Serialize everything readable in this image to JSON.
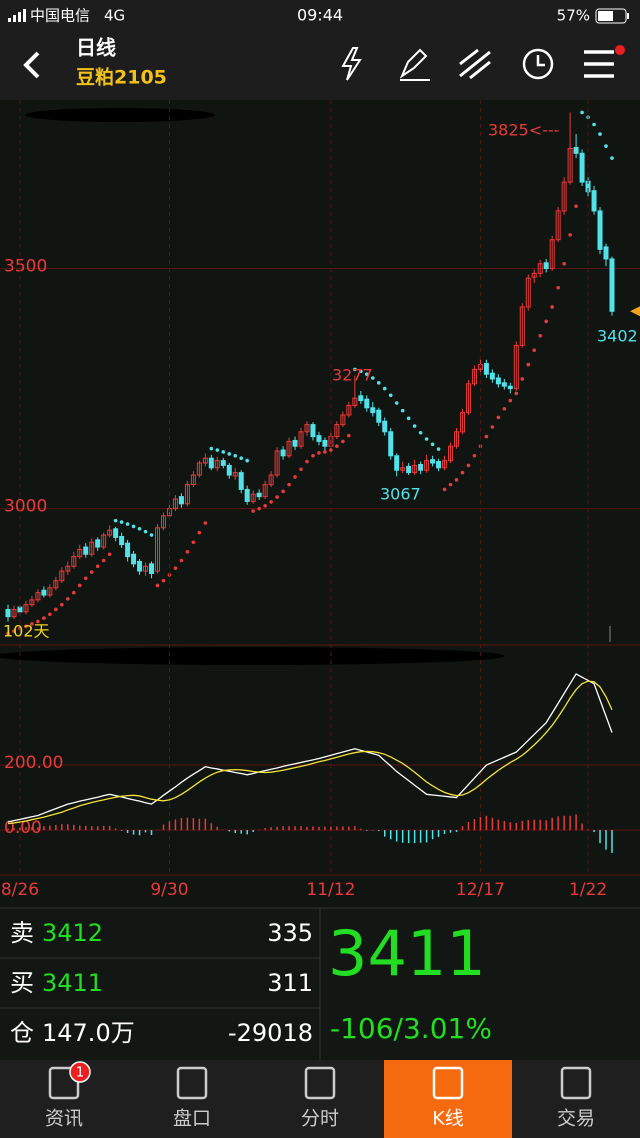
{
  "status_bar": {
    "carrier": "中国电信",
    "network": "4G",
    "time": "09:44",
    "battery": "57%"
  },
  "header": {
    "title": "日线",
    "symbol": "豆粕2105"
  },
  "chart_data": [
    {
      "type": "candlestick",
      "up_color": "#e83a3a",
      "down_color": "#52e3ea",
      "ylim": [
        2716,
        3851
      ],
      "yticks": [
        3000,
        3500
      ],
      "grid": true,
      "annotations": [
        {
          "text": "3825<---",
          "color": "#e83a3a"
        },
        {
          "text": "3277",
          "color": "#e83a3a"
        },
        {
          "text": "3067",
          "color": "#52e3ea"
        },
        {
          "text": "3402",
          "color": "#52e3ea"
        },
        {
          "text": "102天",
          "color": "#f2d21b"
        }
      ],
      "candles": [
        [
          2790,
          2800,
          2765,
          2775
        ],
        [
          2775,
          2798,
          2770,
          2790
        ],
        [
          2795,
          2800,
          2778,
          2785
        ],
        [
          2785,
          2808,
          2780,
          2800
        ],
        [
          2800,
          2818,
          2795,
          2810
        ],
        [
          2810,
          2832,
          2805,
          2825
        ],
        [
          2830,
          2838,
          2815,
          2820
        ],
        [
          2820,
          2842,
          2815,
          2835
        ],
        [
          2835,
          2858,
          2830,
          2850
        ],
        [
          2850,
          2878,
          2845,
          2870
        ],
        [
          2870,
          2890,
          2862,
          2880
        ],
        [
          2880,
          2910,
          2875,
          2900
        ],
        [
          2900,
          2925,
          2895,
          2915
        ],
        [
          2920,
          2928,
          2898,
          2905
        ],
        [
          2905,
          2938,
          2900,
          2930
        ],
        [
          2935,
          2940,
          2912,
          2920
        ],
        [
          2920,
          2950,
          2915,
          2945
        ],
        [
          2945,
          2965,
          2940,
          2955
        ],
        [
          2958,
          2962,
          2932,
          2940
        ],
        [
          2942,
          2950,
          2918,
          2925
        ],
        [
          2928,
          2935,
          2890,
          2900
        ],
        [
          2905,
          2912,
          2878,
          2885
        ],
        [
          2890,
          2895,
          2862,
          2870
        ],
        [
          2870,
          2888,
          2860,
          2880
        ],
        [
          2885,
          2890,
          2855,
          2865
        ],
        [
          2870,
          2968,
          2865,
          2960
        ],
        [
          2960,
          2992,
          2955,
          2985
        ],
        [
          2985,
          3008,
          2978,
          3000
        ],
        [
          3000,
          3028,
          2995,
          3020
        ],
        [
          3025,
          3032,
          3002,
          3010
        ],
        [
          3010,
          3058,
          3005,
          3050
        ],
        [
          3050,
          3078,
          3045,
          3070
        ],
        [
          3070,
          3100,
          3065,
          3095
        ],
        [
          3095,
          3115,
          3088,
          3105
        ],
        [
          3105,
          3112,
          3080,
          3085
        ],
        [
          3085,
          3108,
          3078,
          3100
        ],
        [
          3100,
          3106,
          3084,
          3090
        ],
        [
          3090,
          3095,
          3062,
          3070
        ],
        [
          3068,
          3085,
          3060,
          3075
        ],
        [
          3075,
          3080,
          3032,
          3040
        ],
        [
          3040,
          3048,
          3008,
          3015
        ],
        [
          3015,
          3038,
          3010,
          3030
        ],
        [
          3032,
          3040,
          3018,
          3025
        ],
        [
          3025,
          3058,
          3020,
          3050
        ],
        [
          3050,
          3078,
          3045,
          3070
        ],
        [
          3070,
          3128,
          3065,
          3120
        ],
        [
          3122,
          3130,
          3102,
          3110
        ],
        [
          3110,
          3148,
          3105,
          3140
        ],
        [
          3142,
          3150,
          3122,
          3130
        ],
        [
          3130,
          3168,
          3125,
          3160
        ],
        [
          3160,
          3182,
          3152,
          3175
        ],
        [
          3175,
          3180,
          3142,
          3150
        ],
        [
          3152,
          3160,
          3132,
          3140
        ],
        [
          3142,
          3148,
          3120,
          3130
        ],
        [
          3130,
          3158,
          3125,
          3150
        ],
        [
          3150,
          3182,
          3145,
          3175
        ],
        [
          3175,
          3202,
          3170,
          3195
        ],
        [
          3195,
          3222,
          3190,
          3215
        ],
        [
          3215,
          3277,
          3210,
          3230
        ],
        [
          3235,
          3245,
          3218,
          3225
        ],
        [
          3228,
          3236,
          3202,
          3210
        ],
        [
          3210,
          3222,
          3192,
          3200
        ],
        [
          3205,
          3210,
          3172,
          3180
        ],
        [
          3182,
          3190,
          3152,
          3160
        ],
        [
          3160,
          3168,
          3102,
          3110
        ],
        [
          3110,
          3115,
          3067,
          3080
        ],
        [
          3080,
          3098,
          3074,
          3085
        ],
        [
          3088,
          3095,
          3070,
          3075
        ],
        [
          3075,
          3102,
          3070,
          3090
        ],
        [
          3092,
          3098,
          3072,
          3080
        ],
        [
          3080,
          3112,
          3075,
          3100
        ],
        [
          3102,
          3110,
          3088,
          3095
        ],
        [
          3098,
          3104,
          3078,
          3085
        ],
        [
          3085,
          3110,
          3080,
          3100
        ],
        [
          3100,
          3138,
          3095,
          3130
        ],
        [
          3130,
          3168,
          3125,
          3160
        ],
        [
          3160,
          3208,
          3155,
          3200
        ],
        [
          3200,
          3268,
          3195,
          3260
        ],
        [
          3260,
          3298,
          3255,
          3290
        ],
        [
          3290,
          3312,
          3282,
          3300
        ],
        [
          3302,
          3310,
          3272,
          3280
        ],
        [
          3282,
          3290,
          3262,
          3270
        ],
        [
          3272,
          3280,
          3252,
          3260
        ],
        [
          3262,
          3270,
          3248,
          3255
        ],
        [
          3255,
          3262,
          3240,
          3250
        ],
        [
          3250,
          3348,
          3245,
          3340
        ],
        [
          3340,
          3428,
          3335,
          3420
        ],
        [
          3420,
          3488,
          3412,
          3480
        ],
        [
          3482,
          3498,
          3470,
          3490
        ],
        [
          3490,
          3518,
          3482,
          3510
        ],
        [
          3512,
          3520,
          3492,
          3500
        ],
        [
          3500,
          3568,
          3495,
          3560
        ],
        [
          3560,
          3628,
          3555,
          3620
        ],
        [
          3620,
          3690,
          3612,
          3680
        ],
        [
          3680,
          3825,
          3675,
          3750
        ],
        [
          3752,
          3780,
          3730,
          3740
        ],
        [
          3740,
          3748,
          3672,
          3680
        ],
        [
          3682,
          3690,
          3650,
          3660
        ],
        [
          3662,
          3672,
          3612,
          3620
        ],
        [
          3620,
          3628,
          3530,
          3540
        ],
        [
          3545,
          3552,
          3505,
          3520
        ],
        [
          3520,
          3525,
          3402,
          3411
        ]
      ],
      "sar": [
        2740,
        2745,
        2750,
        2755,
        2760,
        2765,
        2772,
        2780,
        2790,
        2800,
        2812,
        2825,
        2840,
        2855,
        2868,
        2880,
        2892,
        2905,
        2975,
        2972,
        2968,
        2963,
        2958,
        2952,
        2945,
        2840,
        2850,
        2862,
        2876,
        2892,
        2910,
        2930,
        2950,
        2970,
        3125,
        3122,
        3118,
        3114,
        3110,
        3105,
        3100,
        2995,
        3000,
        3006,
        3014,
        3024,
        3036,
        3050,
        3066,
        3082,
        3098,
        3110,
        3116,
        3118,
        3122,
        3130,
        3140,
        3152,
        3290,
        3286,
        3280,
        3272,
        3262,
        3250,
        3236,
        3220,
        3204,
        3188,
        3172,
        3158,
        3145,
        3134,
        3124,
        3040,
        3050,
        3060,
        3075,
        3090,
        3110,
        3130,
        3150,
        3170,
        3190,
        3208,
        3225,
        3240,
        3270,
        3300,
        3330,
        3360,
        3390,
        3420,
        3460,
        3510,
        3570,
        3630,
        3825,
        3815,
        3800,
        3780,
        3755,
        3730
      ]
    },
    {
      "type": "macd",
      "dif_color": "#ffffff",
      "dea_color": "#f2e23a",
      "up_color": "#e83a3a",
      "down_color": "#52e3ea",
      "ylim": [
        -138,
        569
      ],
      "yticks": [
        {
          "value": 200,
          "label": "200.00"
        },
        {
          "value": 0,
          "label": "0.00"
        }
      ],
      "categories": [
        null,
        null,
        "8/26",
        null,
        null,
        null,
        null,
        null,
        null,
        null,
        null,
        null,
        null,
        null,
        null,
        null,
        null,
        null,
        null,
        null,
        null,
        null,
        null,
        null,
        null,
        null,
        null,
        "9/30",
        null,
        null,
        null,
        null,
        null,
        null,
        null,
        null,
        null,
        null,
        null,
        null,
        null,
        null,
        null,
        null,
        null,
        null,
        null,
        null,
        null,
        null,
        null,
        null,
        null,
        null,
        "11/12",
        null,
        null,
        null,
        null,
        null,
        null,
        null,
        null,
        null,
        null,
        null,
        null,
        null,
        null,
        null,
        null,
        null,
        null,
        null,
        null,
        null,
        null,
        null,
        null,
        "12/17",
        null,
        null,
        null,
        null,
        null,
        null,
        null,
        null,
        null,
        null,
        null,
        null,
        null,
        null,
        null,
        null,
        null,
        "1/22",
        null,
        null,
        null,
        null
      ],
      "dif": [
        25,
        29,
        33,
        37,
        41,
        45,
        52,
        59,
        66,
        73,
        80,
        84,
        89,
        93,
        97,
        101,
        106,
        110,
        106,
        102,
        97,
        93,
        89,
        84,
        80,
        93,
        107,
        120,
        133,
        147,
        160,
        172,
        183,
        195,
        191,
        188,
        184,
        181,
        177,
        174,
        170,
        174,
        179,
        183,
        187,
        191,
        196,
        200,
        204,
        208,
        212,
        216,
        220,
        225,
        230,
        235,
        240,
        245,
        250,
        245,
        240,
        235,
        230,
        213,
        197,
        180,
        166,
        152,
        138,
        124,
        110,
        108,
        106,
        104,
        102,
        100,
        120,
        140,
        160,
        180,
        200,
        208,
        216,
        224,
        232,
        240,
        258,
        276,
        294,
        312,
        330,
        360,
        390,
        420,
        450,
        480,
        470,
        460,
        450,
        400,
        350,
        300
      ],
      "dea": [
        20,
        22,
        25,
        28,
        32,
        36,
        40,
        45,
        50,
        55,
        62,
        68,
        75,
        80,
        85,
        89,
        93,
        97,
        101,
        104,
        106,
        107,
        105,
        100,
        95,
        92,
        90,
        93,
        100,
        110,
        122,
        135,
        148,
        160,
        170,
        178,
        183,
        185,
        186,
        185,
        183,
        180,
        178,
        177,
        178,
        181,
        184,
        188,
        192,
        196,
        200,
        205,
        210,
        214,
        219,
        224,
        229,
        234,
        238,
        241,
        242,
        241,
        238,
        233,
        225,
        215,
        205,
        192,
        178,
        163,
        148,
        136,
        125,
        116,
        110,
        106,
        108,
        115,
        126,
        140,
        156,
        170,
        184,
        196,
        208,
        218,
        230,
        245,
        262,
        280,
        300,
        322,
        348,
        376,
        406,
        432,
        450,
        458,
        456,
        440,
        410,
        370
      ],
      "hist": [
        5,
        7,
        8,
        9,
        9,
        9,
        12,
        14,
        16,
        18,
        18,
        16,
        14,
        13,
        12,
        12,
        13,
        13,
        5,
        -2,
        -9,
        -14,
        -16,
        -7,
        -15,
        1,
        17,
        27,
        33,
        37,
        38,
        37,
        35,
        35,
        21,
        10,
        1,
        -4,
        -9,
        -11,
        -13,
        -6,
        1,
        6,
        9,
        10,
        12,
        12,
        12,
        12,
        10,
        11,
        10,
        11,
        11,
        11,
        11,
        11,
        12,
        4,
        -2,
        -1,
        -3,
        -20,
        -28,
        -35,
        -39,
        -40,
        -40,
        -39,
        -38,
        -28,
        -21,
        -12,
        -8,
        -6,
        12,
        25,
        34,
        40,
        44,
        38,
        32,
        28,
        24,
        22,
        28,
        31,
        32,
        32,
        30,
        38,
        42,
        44,
        44,
        48,
        20,
        2,
        -6,
        -40,
        -60,
        -70
      ]
    }
  ],
  "quote": {
    "sell": {
      "label": "卖",
      "price": 3412,
      "volume": 335
    },
    "buy": {
      "label": "买",
      "price": 3411,
      "volume": 311
    },
    "position": {
      "label": "仓",
      "value": "147.0万",
      "change": -29018
    },
    "last": 3411,
    "change": "-106/3.01%"
  },
  "tabs": [
    {
      "label": "资讯",
      "badge": 1
    },
    {
      "label": "盘口"
    },
    {
      "label": "分时"
    },
    {
      "label": "K线",
      "active": true
    },
    {
      "label": "交易"
    }
  ]
}
